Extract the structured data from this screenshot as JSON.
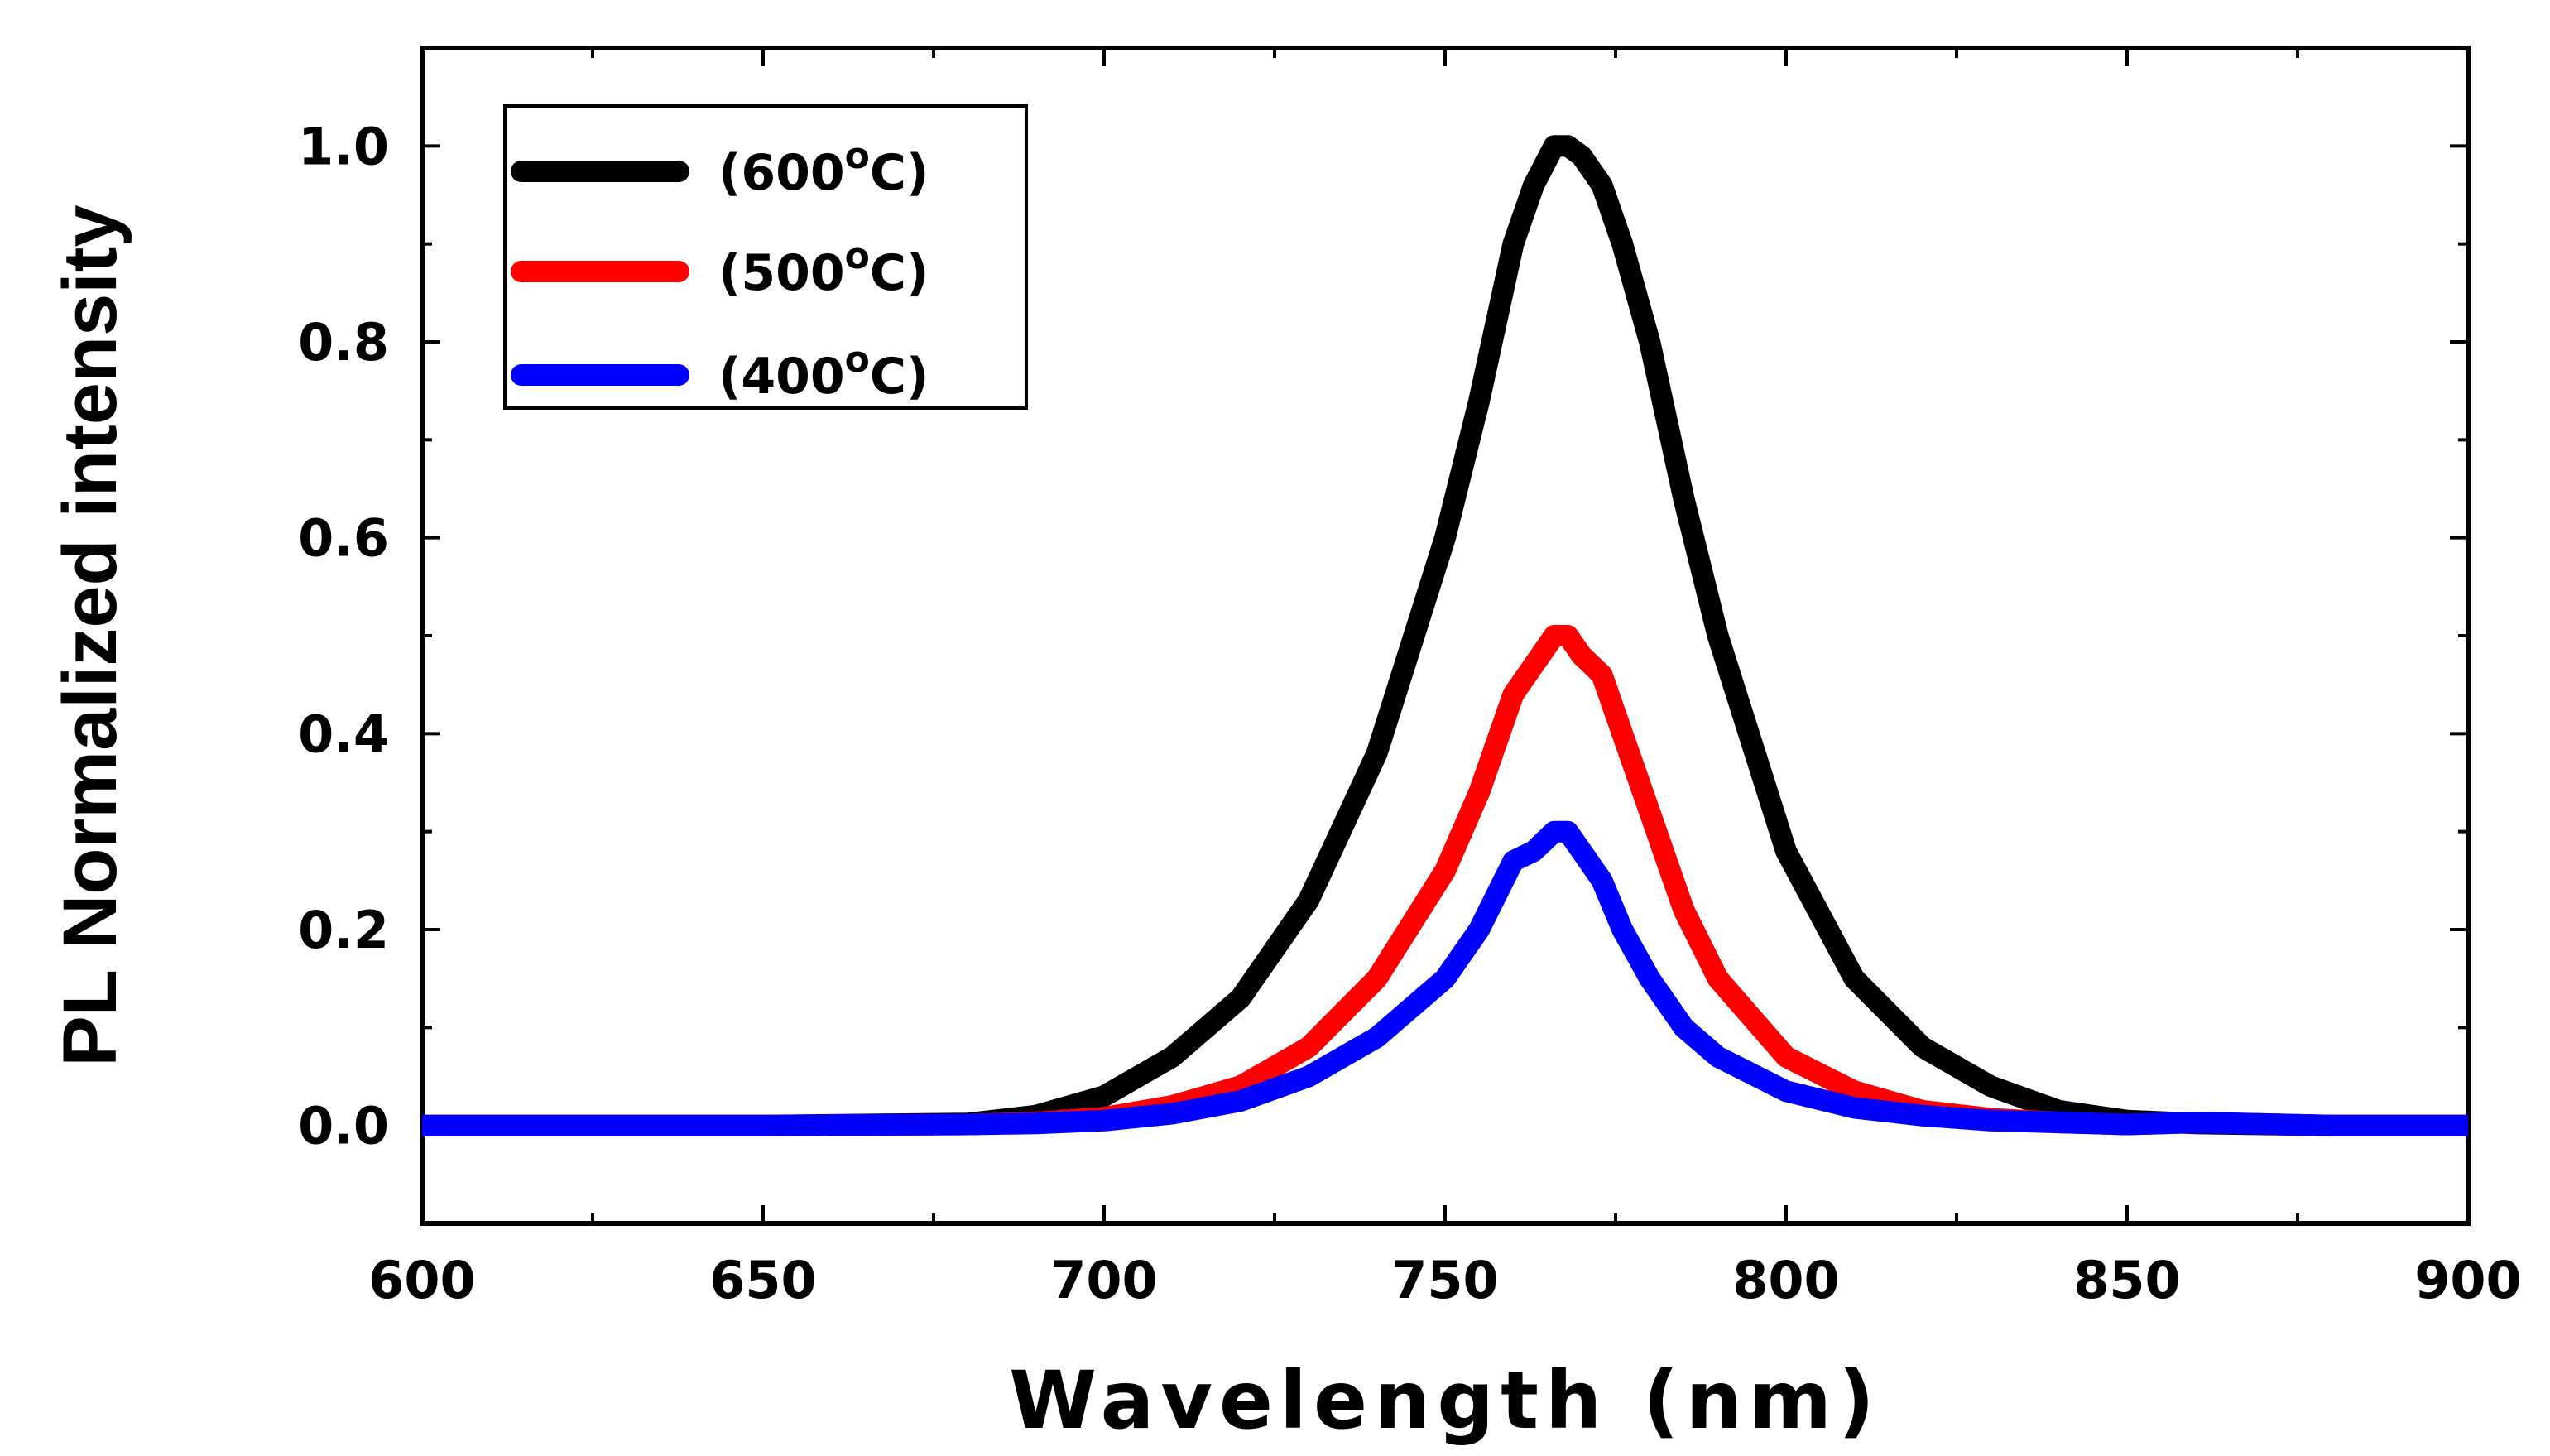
{
  "chart_data": {
    "type": "line",
    "title": "",
    "xlabel": "Wavelength (nm)",
    "ylabel": "PL Normalized intensity",
    "xlim": [
      600,
      900
    ],
    "ylim": [
      -0.1,
      1.1
    ],
    "x_ticks": [
      600,
      650,
      700,
      750,
      800,
      850,
      900
    ],
    "x_tick_labels": [
      "600",
      "650",
      "700",
      "750",
      "800",
      "850",
      "900"
    ],
    "y_ticks": [
      0.0,
      0.2,
      0.4,
      0.6,
      0.8,
      1.0
    ],
    "y_tick_labels": [
      "0.0",
      "0.2",
      "0.4",
      "0.6",
      "0.8",
      "1.0"
    ],
    "grid": false,
    "legend_position": "top-left",
    "x": [
      600,
      650,
      680,
      690,
      700,
      710,
      720,
      730,
      740,
      750,
      755,
      760,
      763,
      766,
      768,
      770,
      773,
      776,
      780,
      785,
      790,
      800,
      810,
      820,
      830,
      840,
      850,
      860,
      880,
      900
    ],
    "series": [
      {
        "name": "(600°C)",
        "legend_main": "(600",
        "legend_sup": "o",
        "legend_end": "C)",
        "color": "#000000",
        "values": [
          0.0,
          0.0,
          0.002,
          0.01,
          0.03,
          0.07,
          0.13,
          0.23,
          0.38,
          0.6,
          0.74,
          0.9,
          0.96,
          1.0,
          1.0,
          0.99,
          0.96,
          0.9,
          0.8,
          0.64,
          0.5,
          0.28,
          0.15,
          0.08,
          0.04,
          0.015,
          0.005,
          0.002,
          0.0,
          0.0
        ]
      },
      {
        "name": "(500°C)",
        "legend_main": "(500",
        "legend_sup": "o",
        "legend_end": "C)",
        "color": "#ff0000",
        "values": [
          0.0,
          0.0,
          0.001,
          0.003,
          0.008,
          0.02,
          0.04,
          0.08,
          0.15,
          0.26,
          0.34,
          0.44,
          0.47,
          0.5,
          0.5,
          0.48,
          0.46,
          0.4,
          0.32,
          0.22,
          0.15,
          0.07,
          0.035,
          0.015,
          0.007,
          0.003,
          0.001,
          0.003,
          0.0,
          0.0
        ]
      },
      {
        "name": "(400°C)",
        "legend_main": "(400",
        "legend_sup": "o",
        "legend_end": "C)",
        "color": "#0000ff",
        "values": [
          0.0,
          0.0,
          0.001,
          0.002,
          0.005,
          0.012,
          0.025,
          0.05,
          0.09,
          0.15,
          0.2,
          0.27,
          0.28,
          0.3,
          0.3,
          0.28,
          0.25,
          0.2,
          0.15,
          0.1,
          0.07,
          0.035,
          0.018,
          0.01,
          0.005,
          0.003,
          0.001,
          0.003,
          0.0,
          0.0
        ]
      }
    ]
  }
}
